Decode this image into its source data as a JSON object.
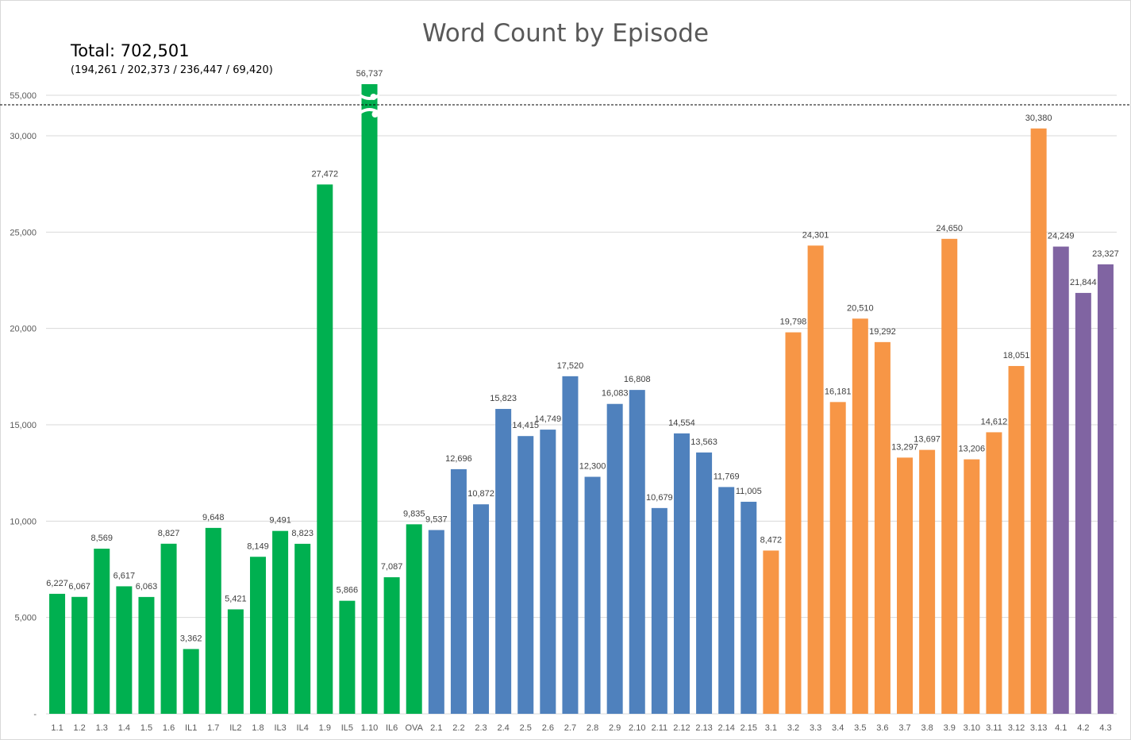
{
  "chart_data": {
    "type": "bar",
    "title": "Word Count by Episode",
    "annotations": {
      "total": "Total: 702,501",
      "breakdown": "(194,261 / 202,373 / 236,447 / 69,420)"
    },
    "xlabel": "",
    "ylabel": "",
    "ylim": [
      0,
      32000
    ],
    "axis_break": {
      "broken_value": 56737,
      "upper_tick": 55000,
      "upper_tick_label": "55,000"
    },
    "yticks": [
      {
        "value": 0,
        "label": "-"
      },
      {
        "value": 5000,
        "label": "5,000"
      },
      {
        "value": 10000,
        "label": "10,000"
      },
      {
        "value": 15000,
        "label": "15,000"
      },
      {
        "value": 20000,
        "label": "20,000"
      },
      {
        "value": 25000,
        "label": "25,000"
      },
      {
        "value": 30000,
        "label": "30,000"
      }
    ],
    "grid": true,
    "legend": "none",
    "group_colors": [
      "#00b050",
      "#4f81bd",
      "#f79646",
      "#8064a2"
    ],
    "categories": [
      "1.1",
      "1.2",
      "1.3",
      "1.4",
      "1.5",
      "1.6",
      "IL1",
      "1.7",
      "IL2",
      "1.8",
      "IL3",
      "IL4",
      "1.9",
      "IL5",
      "1.10",
      "IL6",
      "OVA",
      "2.1",
      "2.2",
      "2.3",
      "2.4",
      "2.5",
      "2.6",
      "2.7",
      "2.8",
      "2.9",
      "2.10",
      "2.11",
      "2.12",
      "2.13",
      "2.14",
      "2.15",
      "3.1",
      "3.2",
      "3.3",
      "3.4",
      "3.5",
      "3.6",
      "3.7",
      "3.8",
      "3.9",
      "3.10",
      "3.11",
      "3.12",
      "3.13",
      "4.1",
      "4.2",
      "4.3"
    ],
    "values": [
      6227,
      6067,
      8569,
      6617,
      6063,
      8827,
      3362,
      9648,
      5421,
      8149,
      9491,
      8823,
      27472,
      5866,
      56737,
      7087,
      9835,
      9537,
      12696,
      10872,
      15823,
      14415,
      14749,
      17520,
      12300,
      16083,
      16808,
      10679,
      14554,
      13563,
      11769,
      11005,
      8472,
      19798,
      24301,
      16181,
      20510,
      19292,
      13297,
      13697,
      24650,
      13206,
      14612,
      18051,
      30380,
      24249,
      21844,
      23327
    ],
    "data_labels": [
      "6,227",
      "6,067",
      "8,569",
      "6,617",
      "6,063",
      "8,827",
      "3,362",
      "9,648",
      "5,421",
      "8,149",
      "9,491",
      "8,823",
      "27,472",
      "5,866",
      "56,737",
      "7,087",
      "9,835",
      "9,537",
      "12,696",
      "10,872",
      "15,823",
      "14,415",
      "14,749",
      "17,520",
      "12,300",
      "16,083",
      "16,808",
      "10,679",
      "14,554",
      "13,563",
      "11,769",
      "11,005",
      "8,472",
      "19,798",
      "24,301",
      "16,181",
      "20,510",
      "19,292",
      "13,297",
      "13,697",
      "24,650",
      "13,206",
      "14,612",
      "18,051",
      "30,380",
      "24,249",
      "21,844",
      "23,327"
    ],
    "groups": [
      0,
      0,
      0,
      0,
      0,
      0,
      0,
      0,
      0,
      0,
      0,
      0,
      0,
      0,
      0,
      0,
      0,
      1,
      1,
      1,
      1,
      1,
      1,
      1,
      1,
      1,
      1,
      1,
      1,
      1,
      1,
      1,
      2,
      2,
      2,
      2,
      2,
      2,
      2,
      2,
      2,
      2,
      2,
      2,
      2,
      3,
      3,
      3
    ]
  }
}
